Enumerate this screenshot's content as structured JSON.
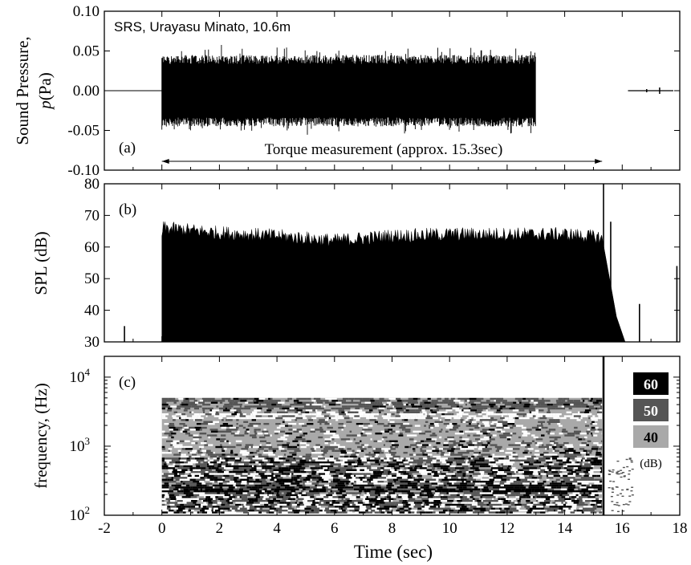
{
  "chart_data": [
    {
      "panel": "(a)",
      "type": "line",
      "annotation": "SRS, Urayasu Minato, 10.6m",
      "ylabel_line1": "Sound Pressure,",
      "ylabel_line2_italic": "p",
      "ylabel_line2_rest": "(Pa)",
      "ylim": [
        -0.1,
        0.1
      ],
      "yticks": [
        "0.10",
        "0.05",
        "0.00",
        "-0.05",
        "-0.10"
      ],
      "ytick_values": [
        0.1,
        0.05,
        0.0,
        -0.05,
        -0.1
      ],
      "arrow_label": "Torque measurement (approx. 15.3sec)",
      "arrow_range": [
        0,
        15.3
      ],
      "signal": {
        "quiet_before": [
          -2,
          0
        ],
        "burst": [
          0,
          13
        ],
        "burst_amplitude": 0.045,
        "peak_amplitude": 0.06,
        "gap": [
          13,
          16.2
        ],
        "residual": [
          16.2,
          18
        ]
      }
    },
    {
      "panel": "(b)",
      "type": "area",
      "ylabel": "SPL (dB)",
      "ylim": [
        30,
        80
      ],
      "yticks": [
        "80",
        "70",
        "60",
        "50",
        "40",
        "30"
      ],
      "ytick_values": [
        80,
        70,
        60,
        50,
        40,
        30
      ],
      "envelope": {
        "start": 0,
        "end": 15.3,
        "level_db": [
          [
            0,
            66
          ],
          [
            2,
            64.5
          ],
          [
            4,
            63.5
          ],
          [
            6,
            62
          ],
          [
            8,
            63.5
          ],
          [
            10,
            64
          ],
          [
            12,
            64
          ],
          [
            14,
            64
          ],
          [
            15.3,
            63
          ]
        ]
      },
      "spikes": [
        {
          "x": -1.3,
          "db": 35
        },
        {
          "x": 15.35,
          "db": 80
        },
        {
          "x": 15.6,
          "db": 68
        },
        {
          "x": 16.6,
          "db": 42
        },
        {
          "x": 17.9,
          "db": 54
        }
      ]
    },
    {
      "panel": "(c)",
      "type": "heatmap",
      "ylabel": "frequency, (Hz)",
      "yscale": "log",
      "ylim": [
        100,
        20000
      ],
      "yticks": [
        {
          "base": "10",
          "exp": "4",
          "value": 10000
        },
        {
          "base": "10",
          "exp": "3",
          "value": 1000
        },
        {
          "base": "10",
          "exp": "2",
          "value": 100
        }
      ],
      "time_range": [
        0,
        15.3
      ],
      "freq_range": [
        110,
        5000
      ],
      "colorbar": {
        "levels": [
          "60",
          "50",
          "40"
        ],
        "unit": "(dB)",
        "colors": [
          "#000000",
          "#555555",
          "#a9a9a9"
        ]
      }
    }
  ],
  "shared_x": {
    "xlabel": "Time (sec)",
    "xlim": [
      -2,
      18
    ],
    "xticks": [
      "-2",
      "0",
      "2",
      "4",
      "6",
      "8",
      "10",
      "12",
      "14",
      "16",
      "18"
    ],
    "xtick_values": [
      -2,
      0,
      2,
      4,
      6,
      8,
      10,
      12,
      14,
      16,
      18
    ]
  }
}
